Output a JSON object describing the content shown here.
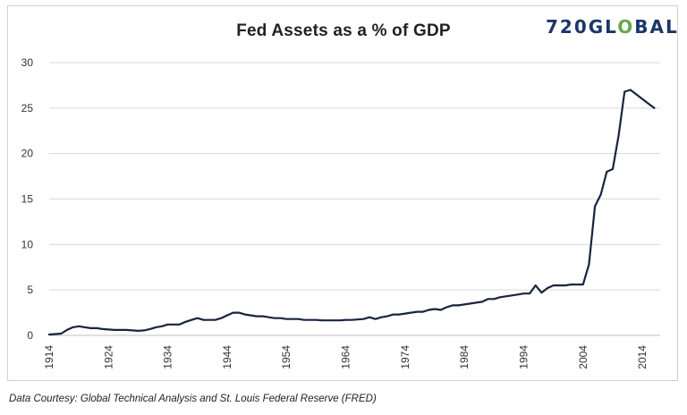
{
  "chart_data": {
    "type": "line",
    "title": "Fed Assets as a % of GDP",
    "xlabel": "",
    "ylabel": "",
    "ylim": [
      0,
      30
    ],
    "yticks": [
      0,
      5,
      10,
      15,
      20,
      25,
      30
    ],
    "xlim": [
      1914,
      2017
    ],
    "xticks": [
      1914,
      1924,
      1934,
      1944,
      1954,
      1964,
      1974,
      1984,
      1994,
      2004,
      2014
    ],
    "grid": "horizontal",
    "series": [
      {
        "color": "#1a2440",
        "x": [
          1914,
          1915,
          1916,
          1917,
          1918,
          1919,
          1920,
          1921,
          1922,
          1923,
          1924,
          1925,
          1926,
          1927,
          1928,
          1929,
          1930,
          1931,
          1932,
          1933,
          1934,
          1935,
          1936,
          1937,
          1938,
          1939,
          1940,
          1941,
          1942,
          1943,
          1944,
          1945,
          1946,
          1947,
          1948,
          1949,
          1950,
          1951,
          1952,
          1953,
          1954,
          1955,
          1956,
          1957,
          1958,
          1959,
          1960,
          1961,
          1962,
          1963,
          1964,
          1965,
          1966,
          1967,
          1968,
          1969,
          1970,
          1971,
          1972,
          1973,
          1974,
          1975,
          1976,
          1977,
          1978,
          1979,
          1980,
          1981,
          1982,
          1983,
          1984,
          1985,
          1986,
          1987,
          1988,
          1989,
          1990,
          1991,
          1992,
          1993,
          1994,
          1995,
          1996,
          1997,
          1998,
          1999,
          2000,
          2001,
          2002,
          2003,
          2004,
          2005,
          2006,
          2007,
          2008,
          2009,
          2010,
          2011,
          2012,
          2013,
          2014,
          2015,
          2016
        ],
        "values": [
          0.1,
          0.15,
          0.2,
          0.6,
          0.9,
          1.0,
          0.9,
          0.8,
          0.8,
          0.7,
          0.65,
          0.6,
          0.6,
          0.6,
          0.55,
          0.5,
          0.55,
          0.7,
          0.9,
          1.0,
          1.2,
          1.2,
          1.2,
          1.5,
          1.7,
          1.9,
          1.7,
          1.7,
          1.7,
          1.9,
          2.2,
          2.5,
          2.5,
          2.3,
          2.2,
          2.1,
          2.1,
          2.0,
          1.9,
          1.9,
          1.8,
          1.8,
          1.8,
          1.7,
          1.7,
          1.7,
          1.65,
          1.65,
          1.65,
          1.65,
          1.7,
          1.7,
          1.75,
          1.8,
          2.0,
          1.8,
          2.0,
          2.1,
          2.3,
          2.3,
          2.4,
          2.5,
          2.6,
          2.6,
          2.8,
          2.9,
          2.8,
          3.1,
          3.3,
          3.3,
          3.4,
          3.5,
          3.6,
          3.7,
          4.0,
          4.0,
          4.2,
          4.3,
          4.4,
          4.5,
          4.6,
          4.6,
          5.5,
          4.7,
          5.2,
          5.5,
          5.5,
          5.5,
          5.6,
          5.6,
          5.6,
          7.8,
          14.2,
          15.5,
          18.0,
          18.3,
          22.0,
          26.8,
          27.0,
          26.5,
          26.0,
          25.5,
          25.0
        ]
      }
    ]
  },
  "branding": {
    "logo_prefix": "720GL",
    "logo_mark": "O",
    "logo_suffix": "BAL"
  },
  "footnote": "Data Courtesy: Global Technical Analysis and St. Louis Federal Reserve (FRED)",
  "colors": {
    "line": "#1a2440",
    "grid": "#d9d9d9",
    "axis_text": "#333333",
    "logo_blue": "#1c3668",
    "logo_green": "#6aa84f"
  }
}
